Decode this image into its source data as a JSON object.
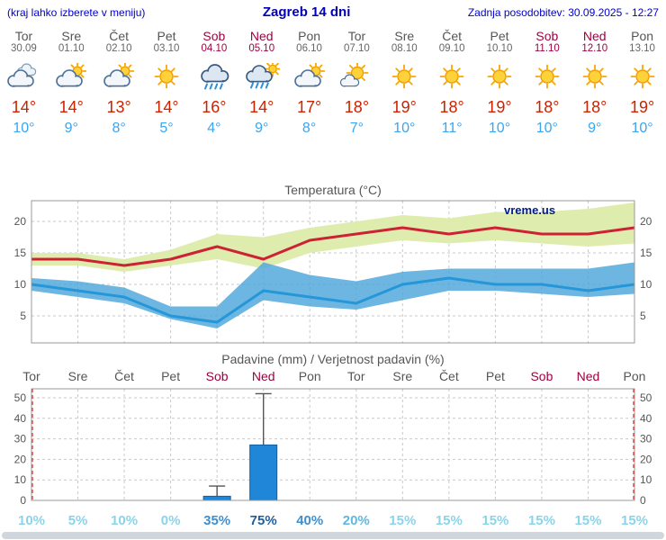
{
  "header": {
    "hint": "(kraj lahko izberete v meniju)",
    "title": "Zagreb 14 dni",
    "updated": "Zadnja posodobitev: 30.09.2025 - 12:27"
  },
  "colors": {
    "header_blue": "#0000cc",
    "weekday_text": "#555555",
    "weekend_text": "#a00040",
    "tmax_text": "#cc2200",
    "tmin_text": "#3aa5f0",
    "max_band": "#dcecaa",
    "min_band": "#4ea6dc",
    "max_line": "#cc2233",
    "min_line": "#2596d8",
    "bar_fill": "#1f86d8",
    "bar_stroke": "#0f5fa0",
    "grid": "#c9c9c9",
    "border": "#999999",
    "now_line": "#e04848",
    "watermark": "#001a8c",
    "prob_low": "#8ad4ea",
    "prob_mid": "#5fb8de",
    "prob_high": "#3e8fd0",
    "prob_vhigh": "#1d5e9e"
  },
  "days": [
    {
      "name": "Tor",
      "date": "30.09",
      "weekend": false,
      "icon": "cloudy",
      "tmax_label": "14°",
      "tmin_label": "10°"
    },
    {
      "name": "Sre",
      "date": "01.10",
      "weekend": false,
      "icon": "partly",
      "tmax_label": "14°",
      "tmin_label": "9°"
    },
    {
      "name": "Čet",
      "date": "02.10",
      "weekend": false,
      "icon": "partly",
      "tmax_label": "13°",
      "tmin_label": "8°"
    },
    {
      "name": "Pet",
      "date": "03.10",
      "weekend": false,
      "icon": "sunny",
      "tmax_label": "14°",
      "tmin_label": "5°"
    },
    {
      "name": "Sob",
      "date": "04.10",
      "weekend": true,
      "icon": "rain",
      "tmax_label": "16°",
      "tmin_label": "4°"
    },
    {
      "name": "Ned",
      "date": "05.10",
      "weekend": true,
      "icon": "rain-sun",
      "tmax_label": "14°",
      "tmin_label": "9°"
    },
    {
      "name": "Pon",
      "date": "06.10",
      "weekend": false,
      "icon": "partly",
      "tmax_label": "17°",
      "tmin_label": "8°"
    },
    {
      "name": "Tor",
      "date": "07.10",
      "weekend": false,
      "icon": "mostly-sunny",
      "tmax_label": "18°",
      "tmin_label": "7°"
    },
    {
      "name": "Sre",
      "date": "08.10",
      "weekend": false,
      "icon": "sunny",
      "tmax_label": "19°",
      "tmin_label": "10°"
    },
    {
      "name": "Čet",
      "date": "09.10",
      "weekend": false,
      "icon": "sunny",
      "tmax_label": "18°",
      "tmin_label": "11°"
    },
    {
      "name": "Pet",
      "date": "10.10",
      "weekend": false,
      "icon": "sunny",
      "tmax_label": "19°",
      "tmin_label": "10°"
    },
    {
      "name": "Sob",
      "date": "11.10",
      "weekend": true,
      "icon": "sunny",
      "tmax_label": "18°",
      "tmin_label": "10°"
    },
    {
      "name": "Ned",
      "date": "12.10",
      "weekend": true,
      "icon": "sunny",
      "tmax_label": "18°",
      "tmin_label": "9°"
    },
    {
      "name": "Pon",
      "date": "13.10",
      "weekend": false,
      "icon": "sunny",
      "tmax_label": "19°",
      "tmin_label": "10°"
    }
  ],
  "chart_data": [
    {
      "type": "area+line",
      "title": "Temperatura (°C)",
      "watermark": "vreme.us",
      "x_labels": [
        "Tor",
        "Sre",
        "Čet",
        "Pet",
        "Sob",
        "Ned",
        "Pon",
        "Tor",
        "Sre",
        "Čet",
        "Pet",
        "Sob",
        "Ned",
        "Pon"
      ],
      "ylim": [
        0.7,
        23.3
      ],
      "yticks": [
        5,
        10,
        15,
        20
      ],
      "series": [
        {
          "name": "max_expected",
          "values": [
            14,
            14,
            13,
            14,
            16,
            14,
            17,
            18,
            19,
            18,
            19,
            18,
            18,
            19
          ]
        },
        {
          "name": "max_range_high",
          "values": [
            15,
            15,
            14,
            15.5,
            18,
            17.5,
            19,
            20,
            21,
            20.5,
            21.5,
            21.5,
            22,
            23
          ]
        },
        {
          "name": "max_range_low",
          "values": [
            13,
            13,
            12,
            13,
            14,
            12.5,
            15,
            16,
            17,
            16.5,
            17,
            16.5,
            16,
            16.5
          ]
        },
        {
          "name": "min_expected",
          "values": [
            10,
            9,
            8,
            5,
            4,
            9,
            8,
            7,
            10,
            11,
            10,
            10,
            9,
            10
          ]
        },
        {
          "name": "min_range_high",
          "values": [
            11,
            10.5,
            9.5,
            6.5,
            6.5,
            13.5,
            11.5,
            10.5,
            12,
            12.5,
            12.5,
            12.5,
            12.5,
            13.5
          ]
        },
        {
          "name": "min_range_low",
          "values": [
            9,
            8,
            7,
            4.5,
            3,
            7.5,
            6.5,
            6,
            7.5,
            9,
            9,
            8.5,
            8,
            8.5
          ]
        }
      ],
      "grid": true,
      "legend": "none"
    },
    {
      "type": "bar",
      "title": "Padavine (mm) / Verjetnost padavin (%)",
      "x_labels": [
        "Tor",
        "Sre",
        "Čet",
        "Pet",
        "Sob",
        "Ned",
        "Pon",
        "Tor",
        "Sre",
        "Čet",
        "Pet",
        "Sob",
        "Ned",
        "Pon"
      ],
      "weekend_flags": [
        false,
        false,
        false,
        false,
        true,
        true,
        false,
        false,
        false,
        false,
        false,
        true,
        true,
        false
      ],
      "ylim": [
        0,
        54
      ],
      "yticks": [
        0,
        10,
        20,
        30,
        40,
        50
      ],
      "precip_mm": [
        0,
        0,
        0,
        0,
        2,
        27,
        0,
        0,
        0,
        0,
        0,
        0,
        0,
        0
      ],
      "precip_max_mm": [
        0,
        0,
        0,
        0,
        7,
        52,
        0,
        0,
        0,
        0,
        0,
        0,
        0,
        0
      ],
      "prob_percent_labels": [
        "10%",
        "5%",
        "10%",
        "0%",
        "35%",
        "75%",
        "40%",
        "20%",
        "15%",
        "15%",
        "15%",
        "15%",
        "15%",
        "15%"
      ],
      "prob_percent": [
        10,
        5,
        10,
        0,
        35,
        75,
        40,
        20,
        15,
        15,
        15,
        15,
        15,
        15
      ],
      "grid": true,
      "legend": "none"
    }
  ]
}
